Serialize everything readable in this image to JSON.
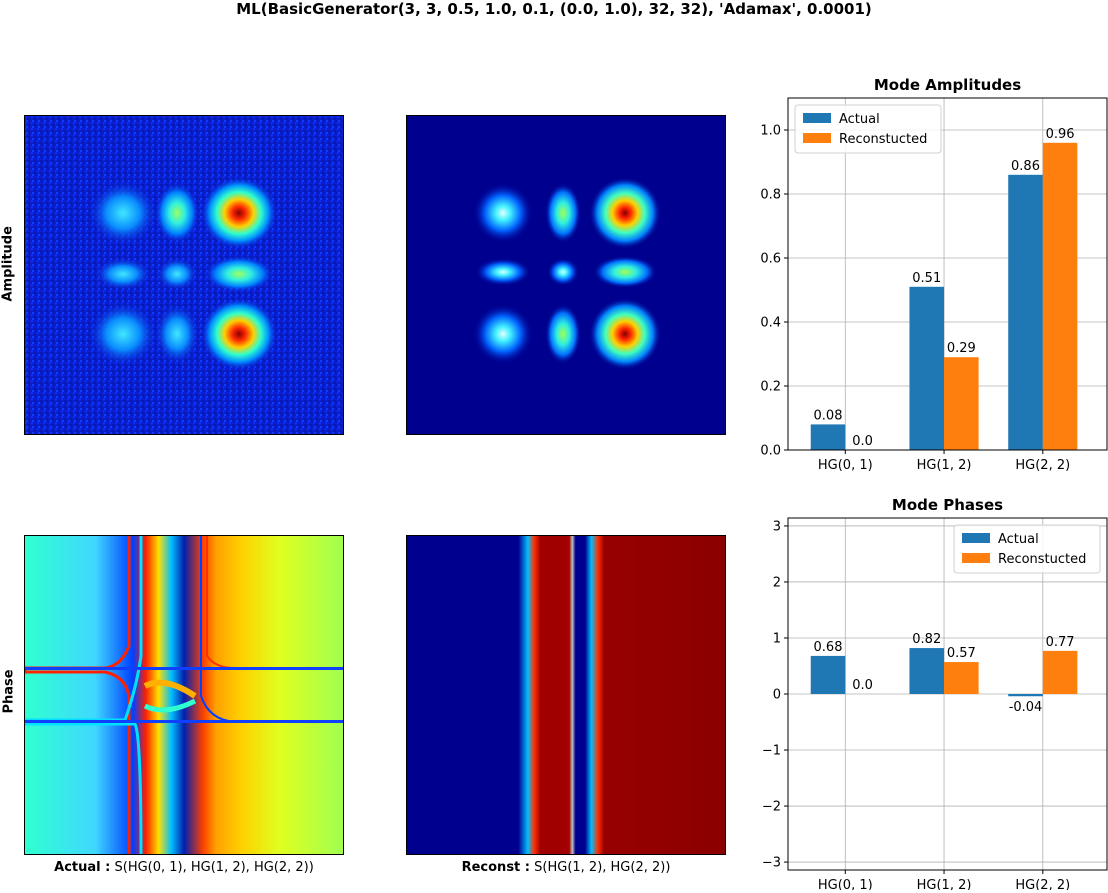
{
  "suptitle": "ML(BasicGenerator(3, 3, 0.5, 1.0, 0.1, (0.0, 1.0), 32, 32), 'Adamax', 0.0001)",
  "row_labels": {
    "amplitude": "Amplitude",
    "phase": "Phase"
  },
  "captions": {
    "actual_prefix": "Actual :",
    "actual_text": "S(HG(0, 1), HG(1, 2), HG(2, 2))",
    "reconst_prefix": "Reconst :",
    "reconst_text": "S(HG(1, 2), HG(2, 2))"
  },
  "colors": {
    "actual": "#1f77b4",
    "reconstructed": "#ff7f0e",
    "grid": "#b0b0b0"
  },
  "chart_data": [
    {
      "type": "bar",
      "title": "Mode Amplitudes",
      "categories": [
        "HG(0, 1)",
        "HG(1, 2)",
        "HG(2, 2)"
      ],
      "series": [
        {
          "name": "Actual",
          "values": [
            0.08,
            0.51,
            0.86
          ],
          "labels": [
            "0.08",
            "0.51",
            "0.86"
          ]
        },
        {
          "name": "Reconstucted",
          "values": [
            0.0,
            0.29,
            0.96
          ],
          "labels": [
            "0.0",
            "0.29",
            "0.96"
          ]
        }
      ],
      "ylim": [
        0,
        1.1
      ],
      "yticks": [
        0.0,
        0.2,
        0.4,
        0.6,
        0.8,
        1.0
      ],
      "ytick_labels": [
        "0.0",
        "0.2",
        "0.4",
        "0.6",
        "0.8",
        "1.0"
      ],
      "grid": true,
      "legend": "top-left"
    },
    {
      "type": "bar",
      "title": "Mode Phases",
      "categories": [
        "HG(0, 1)",
        "HG(1, 2)",
        "HG(2, 2)"
      ],
      "series": [
        {
          "name": "Actual",
          "values": [
            0.68,
            0.82,
            -0.04
          ],
          "labels": [
            "0.68",
            "0.82",
            "-0.04"
          ]
        },
        {
          "name": "Reconstucted",
          "values": [
            0.0,
            0.57,
            0.77
          ],
          "labels": [
            "0.0",
            "0.57",
            "0.77"
          ]
        }
      ],
      "ylim": [
        -3.14159,
        3.14159
      ],
      "yticks": [
        -3,
        -2,
        -1,
        0,
        1,
        2,
        3
      ],
      "ytick_labels": [
        "−3",
        "−2",
        "−1",
        "0",
        "1",
        "2",
        "3"
      ],
      "grid": true,
      "legend": "top-right"
    }
  ]
}
